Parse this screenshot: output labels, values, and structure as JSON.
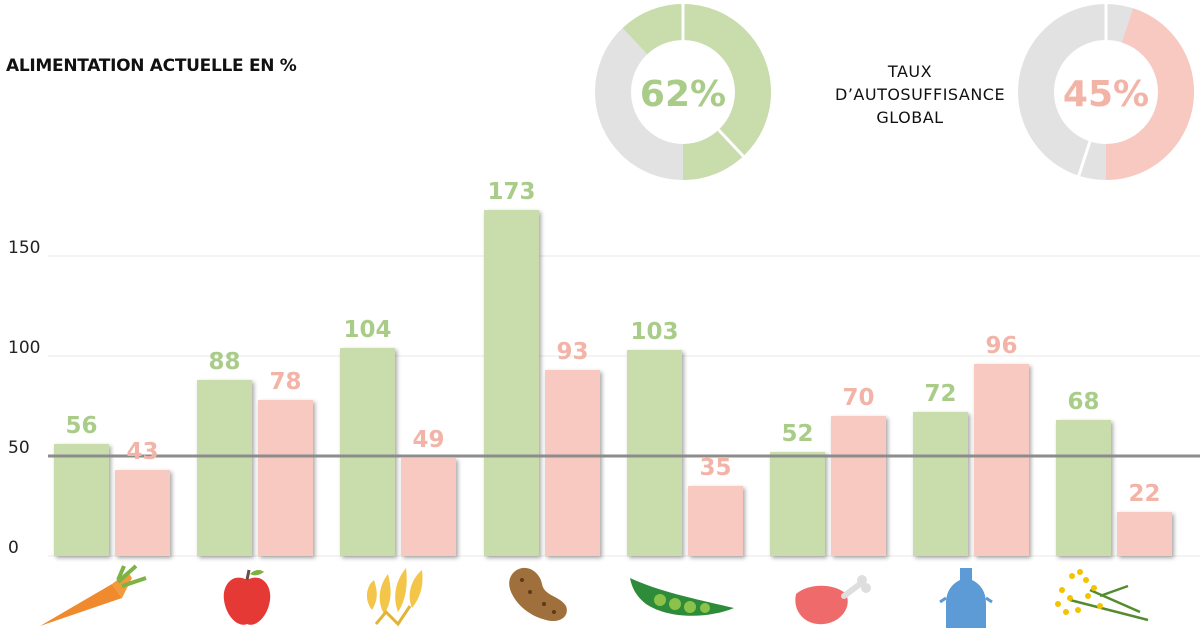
{
  "title": "ALIMENTATION ACTUELLE EN %",
  "global": {
    "label_lines": [
      "TAUX",
      "D’AUTOSUFFISANCE",
      "GLOBAL"
    ],
    "green_percent": 62,
    "green_text": "62%",
    "pink_percent": 45,
    "pink_text": "45%"
  },
  "colors": {
    "green": "#c8dcac",
    "green_label": "#a9cc89",
    "pink": "#f8c9c0",
    "pink_label": "#f3b4a8",
    "donut_rest": "#e2e2e2",
    "reference_line": "#8c8c8c",
    "grid": "#e8e8e8"
  },
  "chart_data": {
    "type": "bar",
    "categories": [
      "carrot-icon",
      "apple-icon",
      "wheat-icon",
      "potato-icon",
      "pea-pod-icon",
      "meat-icon",
      "milk-can-icon",
      "rapeseed-icon"
    ],
    "series": [
      {
        "values": [
          56,
          88,
          104,
          173,
          103,
          52,
          72,
          68
        ],
        "labels": [
          "56",
          "88",
          "104",
          "173",
          "103",
          "52",
          "72",
          "68"
        ]
      },
      {
        "values": [
          43,
          78,
          49,
          93,
          35,
          70,
          96,
          22
        ],
        "labels": [
          "43",
          "78",
          "49",
          "93",
          "35",
          "70",
          "96",
          "22"
        ]
      }
    ],
    "yticks": [
      "0",
      "50",
      "100",
      "150"
    ],
    "ylim": [
      0,
      180
    ],
    "reference_line": 50,
    "grid": true
  }
}
